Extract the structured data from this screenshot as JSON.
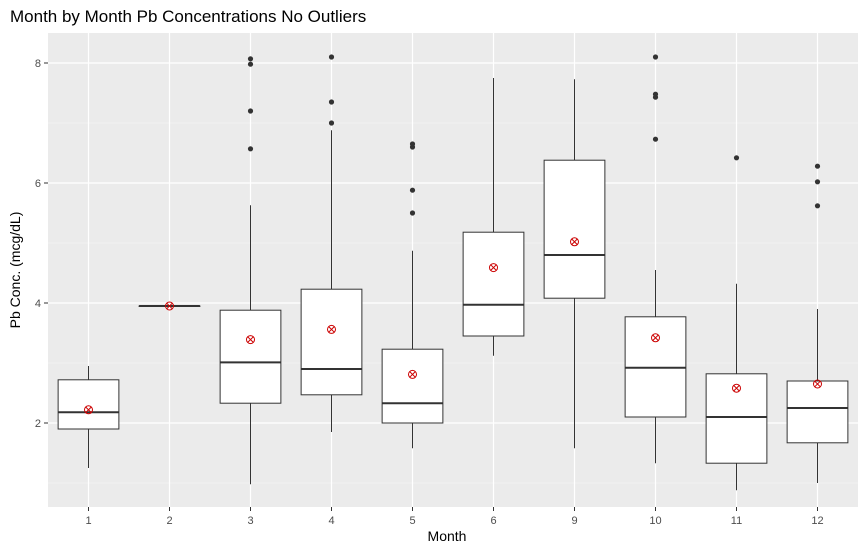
{
  "colors": {
    "panel": "#ebebeb",
    "grid_major": "#ffffff",
    "box_fill": "#ffffff",
    "box_line": "#333333",
    "outlier": "#333333",
    "mean_marker": "#cc0000",
    "tick_label": "#4d4d4d"
  },
  "chart_data": {
    "type": "boxplot",
    "title": "Month by Month Pb Concentrations No Outliers",
    "xlabel": "Month",
    "ylabel": "Pb Conc. (mcg/dL)",
    "ylim": [
      0.6,
      8.5
    ],
    "yticks": [
      2,
      4,
      6,
      8
    ],
    "grid": true,
    "mean_marker": "red circled x",
    "categories": [
      "1",
      "2",
      "3",
      "4",
      "5",
      "6",
      "9",
      "10",
      "11",
      "12"
    ],
    "boxes": [
      {
        "month": "1",
        "whisker_low": 1.25,
        "q1": 1.9,
        "median": 2.18,
        "q3": 2.72,
        "whisker_high": 2.95,
        "mean": 2.22,
        "outliers": []
      },
      {
        "month": "2",
        "whisker_low": 3.95,
        "q1": 3.95,
        "median": 3.95,
        "q3": 3.95,
        "whisker_high": 3.95,
        "mean": 3.95,
        "outliers": []
      },
      {
        "month": "3",
        "whisker_low": 0.98,
        "q1": 2.33,
        "median": 3.01,
        "q3": 3.88,
        "whisker_high": 5.63,
        "mean": 3.39,
        "outliers": [
          6.57,
          7.2,
          7.98,
          8.07
        ]
      },
      {
        "month": "4",
        "whisker_low": 1.85,
        "q1": 2.47,
        "median": 2.9,
        "q3": 4.23,
        "whisker_high": 6.88,
        "mean": 3.56,
        "outliers": [
          7.0,
          7.35,
          8.1
        ]
      },
      {
        "month": "5",
        "whisker_low": 1.58,
        "q1": 2.0,
        "median": 2.33,
        "q3": 3.23,
        "whisker_high": 4.87,
        "mean": 2.81,
        "outliers": [
          5.5,
          5.88,
          6.6,
          6.65
        ]
      },
      {
        "month": "6",
        "whisker_low": 3.12,
        "q1": 3.45,
        "median": 3.97,
        "q3": 5.18,
        "whisker_high": 7.75,
        "mean": 4.59,
        "outliers": []
      },
      {
        "month": "9",
        "whisker_low": 1.58,
        "q1": 4.08,
        "median": 4.8,
        "q3": 6.38,
        "whisker_high": 7.73,
        "mean": 5.02,
        "outliers": []
      },
      {
        "month": "10",
        "whisker_low": 1.33,
        "q1": 2.1,
        "median": 2.92,
        "q3": 3.77,
        "whisker_high": 4.55,
        "mean": 3.42,
        "outliers": [
          6.73,
          7.43,
          7.48,
          8.1
        ]
      },
      {
        "month": "11",
        "whisker_low": 0.88,
        "q1": 1.33,
        "median": 2.1,
        "q3": 2.82,
        "whisker_high": 4.32,
        "mean": 2.58,
        "outliers": [
          6.42
        ]
      },
      {
        "month": "12",
        "whisker_low": 1.0,
        "q1": 1.67,
        "median": 2.25,
        "q3": 2.7,
        "whisker_high": 3.9,
        "mean": 2.65,
        "outliers": [
          5.62,
          6.02,
          6.28
        ]
      }
    ]
  }
}
